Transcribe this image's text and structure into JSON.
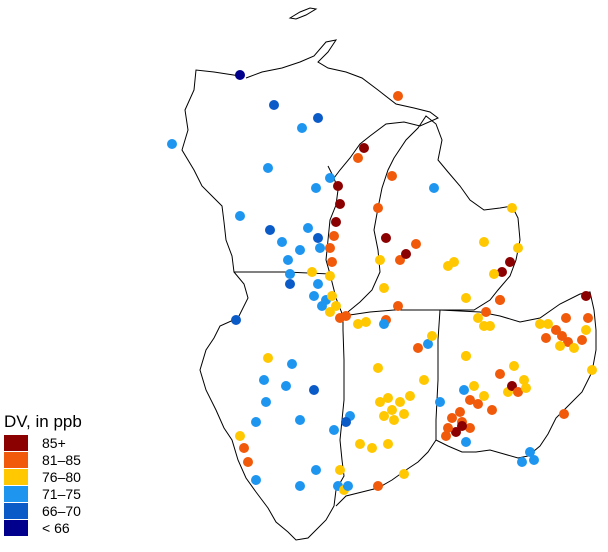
{
  "legend": {
    "title": "DV, in ppb",
    "classes": [
      {
        "label": "85+",
        "color": "#8b0000"
      },
      {
        "label": "81–85",
        "color": "#f05a0a"
      },
      {
        "label": "76–80",
        "color": "#ffc800"
      },
      {
        "label": "71–75",
        "color": "#1e96f0"
      },
      {
        "label": "66–70",
        "color": "#0a5ac8"
      },
      {
        "label": "< 66",
        "color": "#00008c"
      }
    ]
  }
}
